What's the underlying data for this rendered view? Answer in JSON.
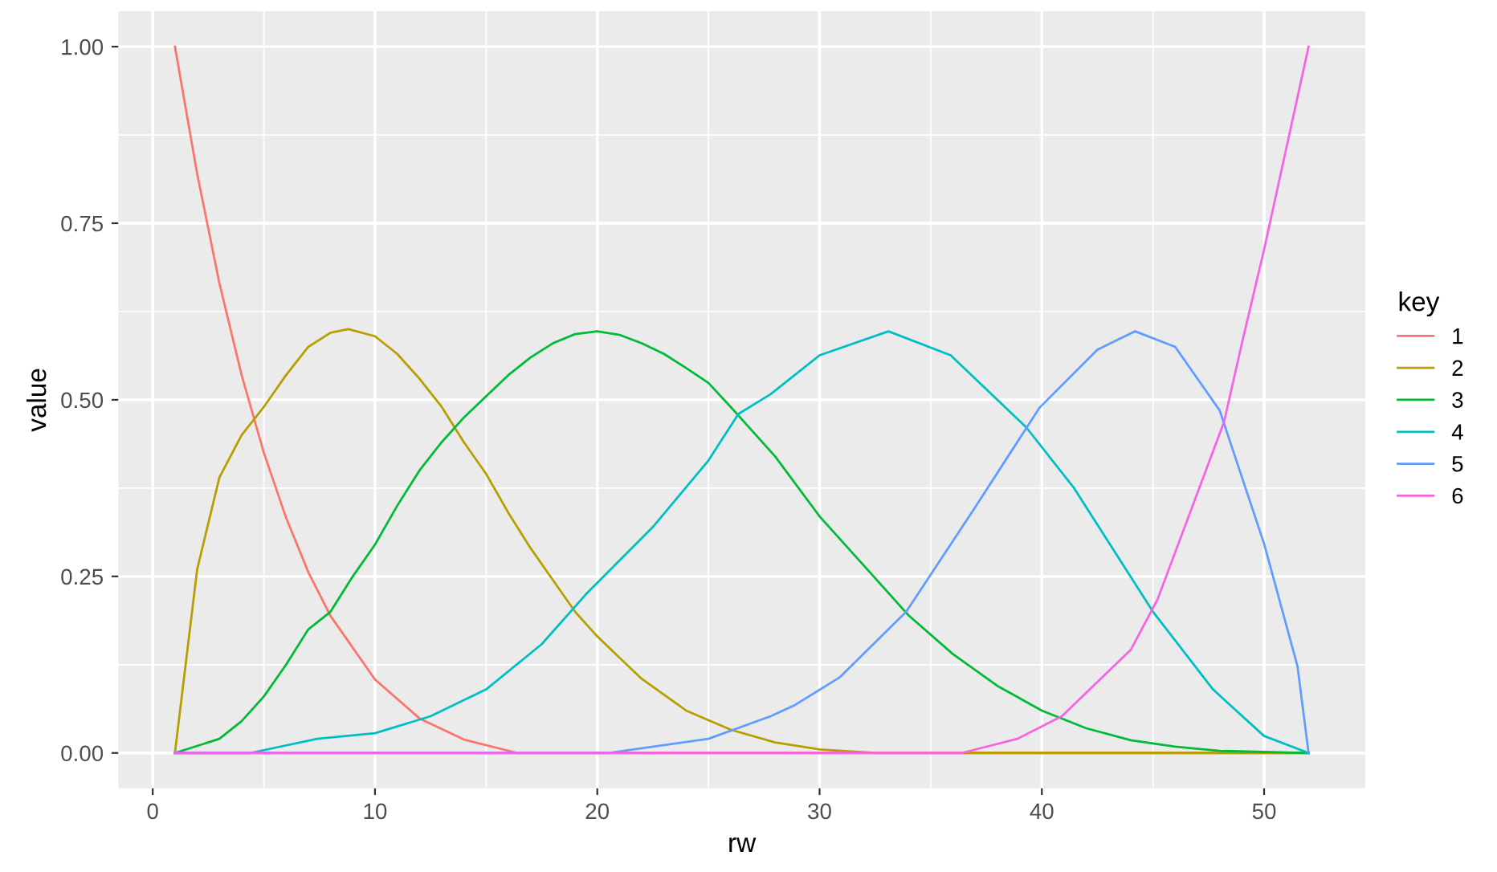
{
  "chart_data": {
    "type": "line",
    "xlabel": "rw",
    "ylabel": "value",
    "legend_title": "key",
    "legend": "right",
    "grid": true,
    "xlim": [
      -1.55,
      54.55
    ],
    "xticks": [
      0,
      10,
      20,
      30,
      40,
      50
    ],
    "ylim": [
      -0.05,
      1.05
    ],
    "yticks": [
      {
        "value": 0,
        "label": "0.00"
      },
      {
        "value": 0.25,
        "label": "0.25"
      },
      {
        "value": 0.5,
        "label": "0.50"
      },
      {
        "value": 0.75,
        "label": "0.75"
      },
      {
        "value": 1,
        "label": "1.00"
      }
    ],
    "series": [
      {
        "name": "1",
        "color": "#f8766d",
        "x": [
          1,
          2,
          3,
          4,
          5,
          6,
          7,
          8,
          10,
          12,
          14,
          16.4,
          52
        ],
        "values": [
          1,
          0.82,
          0.665,
          0.535,
          0.425,
          0.333,
          0.256,
          0.194,
          0.104,
          0.049,
          0.019,
          0,
          0
        ]
      },
      {
        "name": "2",
        "color": "#b79f00",
        "x": [
          1,
          2,
          3,
          4,
          5,
          6,
          7,
          8,
          8.8,
          10,
          11,
          12,
          13,
          14,
          15,
          16,
          17,
          18,
          19,
          20,
          22,
          24,
          26,
          28,
          30,
          32.5,
          52
        ],
        "values": [
          0,
          0.26,
          0.39,
          0.45,
          0.49,
          0.535,
          0.575,
          0.595,
          0.6,
          0.59,
          0.565,
          0.53,
          0.49,
          0.44,
          0.395,
          0.34,
          0.29,
          0.245,
          0.2,
          0.165,
          0.105,
          0.06,
          0.033,
          0.015,
          0.005,
          0,
          0
        ]
      },
      {
        "name": "3",
        "color": "#00ba38",
        "x": [
          1,
          3,
          4,
          5,
          6,
          7,
          8,
          9,
          10,
          11,
          12,
          13,
          14,
          15,
          16,
          17,
          18,
          19,
          20,
          21,
          22,
          23,
          24,
          25,
          26,
          28,
          30,
          32,
          34,
          36,
          38,
          40,
          42,
          44,
          46,
          48,
          52
        ],
        "values": [
          0,
          0.02,
          0.045,
          0.08,
          0.125,
          0.175,
          0.2,
          0.25,
          0.295,
          0.35,
          0.4,
          0.44,
          0.475,
          0.505,
          0.535,
          0.56,
          0.58,
          0.593,
          0.597,
          0.592,
          0.58,
          0.565,
          0.545,
          0.524,
          0.49,
          0.42,
          0.335,
          0.265,
          0.195,
          0.14,
          0.095,
          0.06,
          0.035,
          0.018,
          0.009,
          0.003,
          0
        ]
      },
      {
        "name": "4",
        "color": "#00bfc4",
        "x": [
          1,
          4.4,
          7.4,
          10,
          12.5,
          15,
          17.5,
          19.5,
          22.5,
          25,
          26.35,
          27.8,
          30,
          33.1,
          35.9,
          39.3,
          41.45,
          45,
          47.7,
          50,
          52
        ],
        "values": [
          0,
          0,
          0.02,
          0.028,
          0.052,
          0.09,
          0.154,
          0.225,
          0.32,
          0.414,
          0.48,
          0.508,
          0.563,
          0.597,
          0.563,
          0.461,
          0.375,
          0.2,
          0.09,
          0.024,
          0
        ]
      },
      {
        "name": "5",
        "color": "#619cff",
        "x": [
          1,
          20.5,
          25,
          27.8,
          28.9,
          30.9,
          33.9,
          36.9,
          39.9,
          42.5,
          44.2,
          46,
          48,
          50,
          51.5,
          52
        ],
        "values": [
          0,
          0,
          0.02,
          0.052,
          0.068,
          0.107,
          0.2,
          0.343,
          0.489,
          0.571,
          0.597,
          0.575,
          0.485,
          0.296,
          0.123,
          0
        ]
      },
      {
        "name": "6",
        "color": "#f564e3",
        "x": [
          1,
          36.4,
          38.9,
          40.9,
          44,
          45.2,
          48.2,
          49,
          50,
          52
        ],
        "values": [
          0,
          0,
          0.02,
          0.052,
          0.146,
          0.217,
          0.469,
          0.58,
          0.713,
          1
        ]
      }
    ]
  }
}
